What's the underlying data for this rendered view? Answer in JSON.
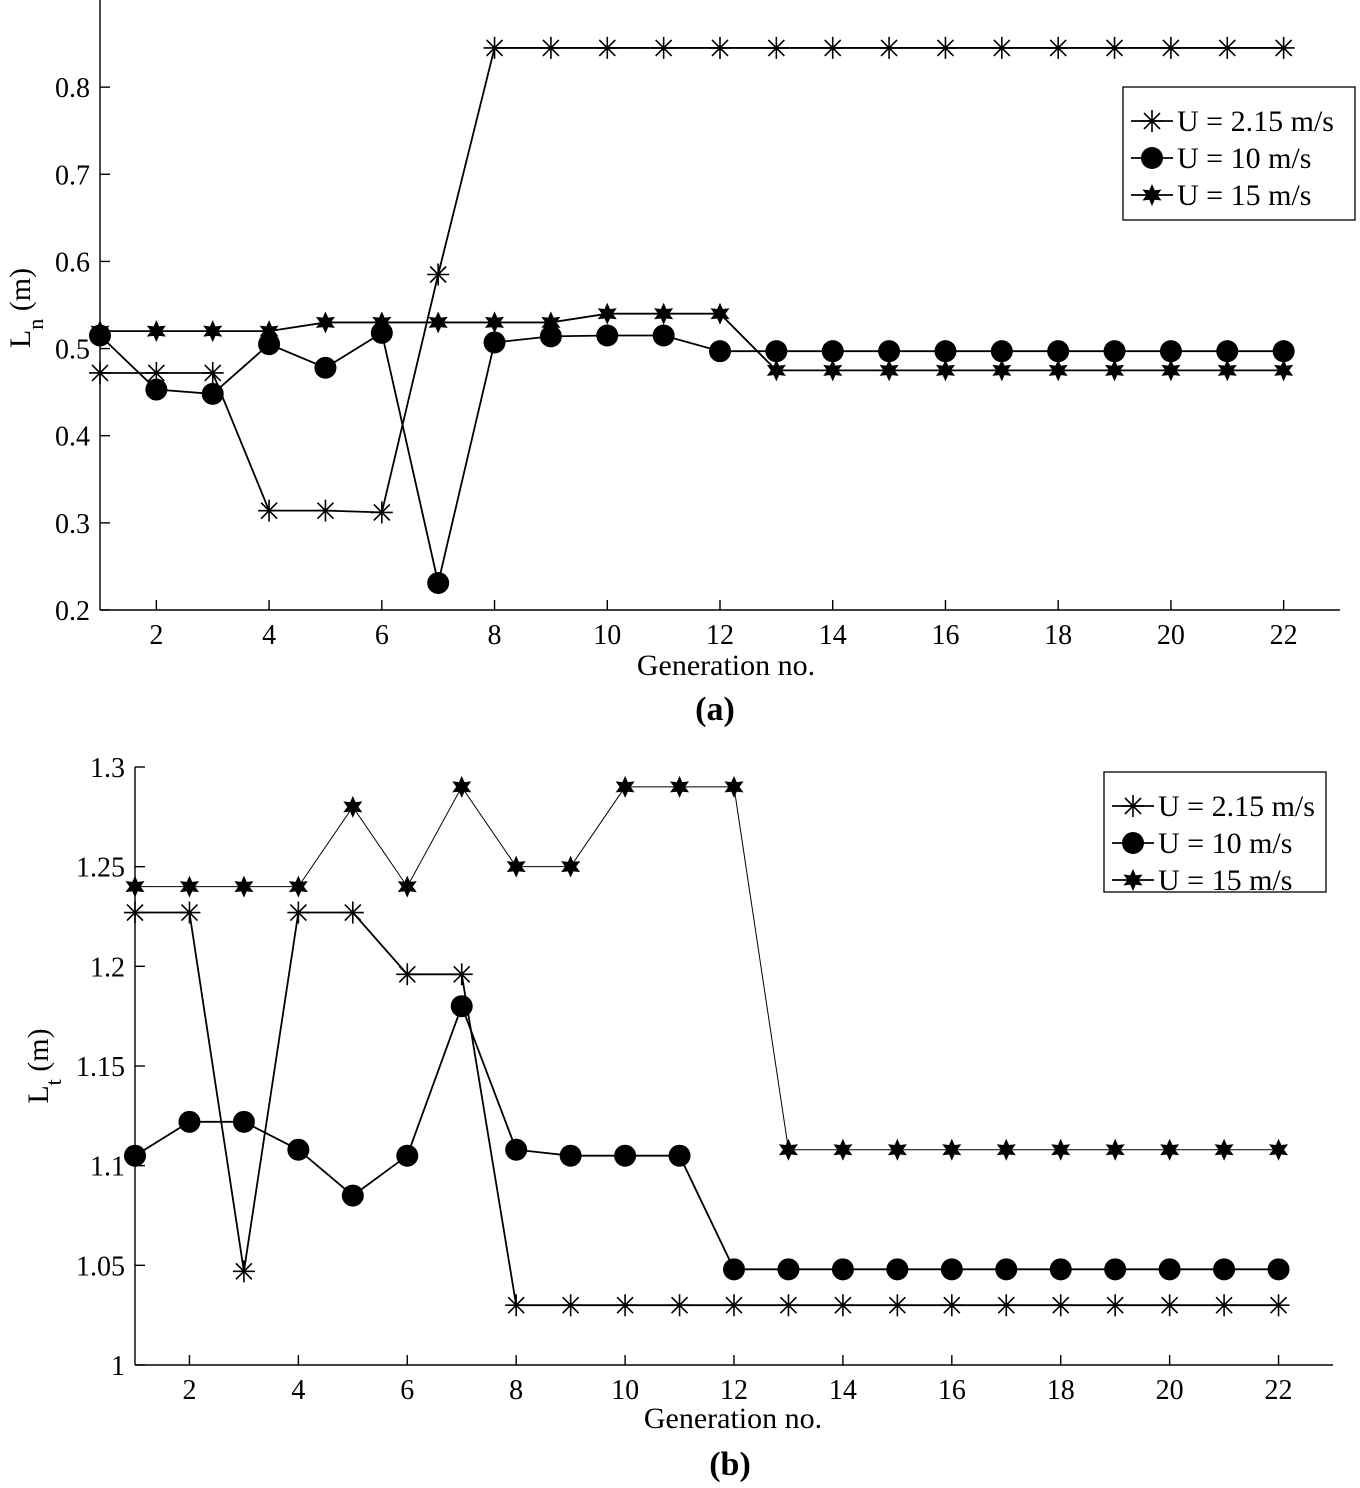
{
  "chart_data": [
    {
      "type": "line",
      "panel": "(a)",
      "xlabel": "Generation no.",
      "ylabel": "L",
      "ylabel_sub": "n",
      "ylabel_unit": " (m)",
      "xlim": [
        1,
        23
      ],
      "ylim": [
        0.2,
        0.9
      ],
      "xticks": [
        2,
        4,
        6,
        8,
        10,
        12,
        14,
        16,
        18,
        20,
        22
      ],
      "yticks": [
        0.2,
        0.3,
        0.4,
        0.5,
        0.6,
        0.7,
        0.8
      ],
      "legend_position": "top-right",
      "x": [
        1,
        2,
        3,
        4,
        5,
        6,
        7,
        8,
        9,
        10,
        11,
        12,
        13,
        14,
        15,
        16,
        17,
        18,
        19,
        20,
        21,
        22
      ],
      "series": [
        {
          "name": "U = 2.15 m/s",
          "marker": "asterisk",
          "values": [
            0.472,
            0.472,
            0.472,
            0.314,
            0.314,
            0.312,
            0.585,
            0.845,
            0.845,
            0.845,
            0.845,
            0.845,
            0.845,
            0.845,
            0.845,
            0.845,
            0.845,
            0.845,
            0.845,
            0.845,
            0.845,
            0.845
          ]
        },
        {
          "name": "U = 10 m/s",
          "marker": "circle",
          "values": [
            0.515,
            0.453,
            0.448,
            0.505,
            0.478,
            0.518,
            0.231,
            0.507,
            0.514,
            0.515,
            0.515,
            0.497,
            0.497,
            0.497,
            0.497,
            0.497,
            0.497,
            0.497,
            0.497,
            0.497,
            0.497,
            0.497
          ]
        },
        {
          "name": "U = 15 m/s",
          "marker": "star",
          "values": [
            0.52,
            0.52,
            0.52,
            0.52,
            0.53,
            0.53,
            0.53,
            0.53,
            0.53,
            0.54,
            0.54,
            0.54,
            0.475,
            0.475,
            0.475,
            0.475,
            0.475,
            0.475,
            0.475,
            0.475,
            0.475,
            0.475
          ]
        }
      ]
    },
    {
      "type": "line",
      "panel": "(b)",
      "xlabel": "Generation no.",
      "ylabel": "L",
      "ylabel_sub": "t",
      "ylabel_unit": " (m)",
      "xlim": [
        1,
        23
      ],
      "ylim": [
        1.0,
        1.3
      ],
      "xticks": [
        2,
        4,
        6,
        8,
        10,
        12,
        14,
        16,
        18,
        20,
        22
      ],
      "yticks": [
        1,
        1.05,
        1.1,
        1.15,
        1.2,
        1.25,
        1.3
      ],
      "legend_position": "top-right",
      "x": [
        1,
        2,
        3,
        4,
        5,
        6,
        7,
        8,
        9,
        10,
        11,
        12,
        13,
        14,
        15,
        16,
        17,
        18,
        19,
        20,
        21,
        22
      ],
      "series": [
        {
          "name": "U = 2.15 m/s",
          "marker": "asterisk",
          "values": [
            1.227,
            1.227,
            1.047,
            1.227,
            1.227,
            1.196,
            1.196,
            1.03,
            1.03,
            1.03,
            1.03,
            1.03,
            1.03,
            1.03,
            1.03,
            1.03,
            1.03,
            1.03,
            1.03,
            1.03,
            1.03,
            1.03
          ]
        },
        {
          "name": "U = 10 m/s",
          "marker": "circle",
          "values": [
            1.105,
            1.122,
            1.122,
            1.108,
            1.085,
            1.105,
            1.18,
            1.108,
            1.105,
            1.105,
            1.105,
            1.048,
            1.048,
            1.048,
            1.048,
            1.048,
            1.048,
            1.048,
            1.048,
            1.048,
            1.048,
            1.048
          ]
        },
        {
          "name": "U = 15 m/s",
          "marker": "star",
          "values": [
            1.24,
            1.24,
            1.24,
            1.24,
            1.28,
            1.24,
            1.29,
            1.25,
            1.25,
            1.29,
            1.29,
            1.29,
            1.108,
            1.108,
            1.108,
            1.108,
            1.108,
            1.108,
            1.108,
            1.108,
            1.108,
            1.108
          ]
        }
      ]
    }
  ]
}
